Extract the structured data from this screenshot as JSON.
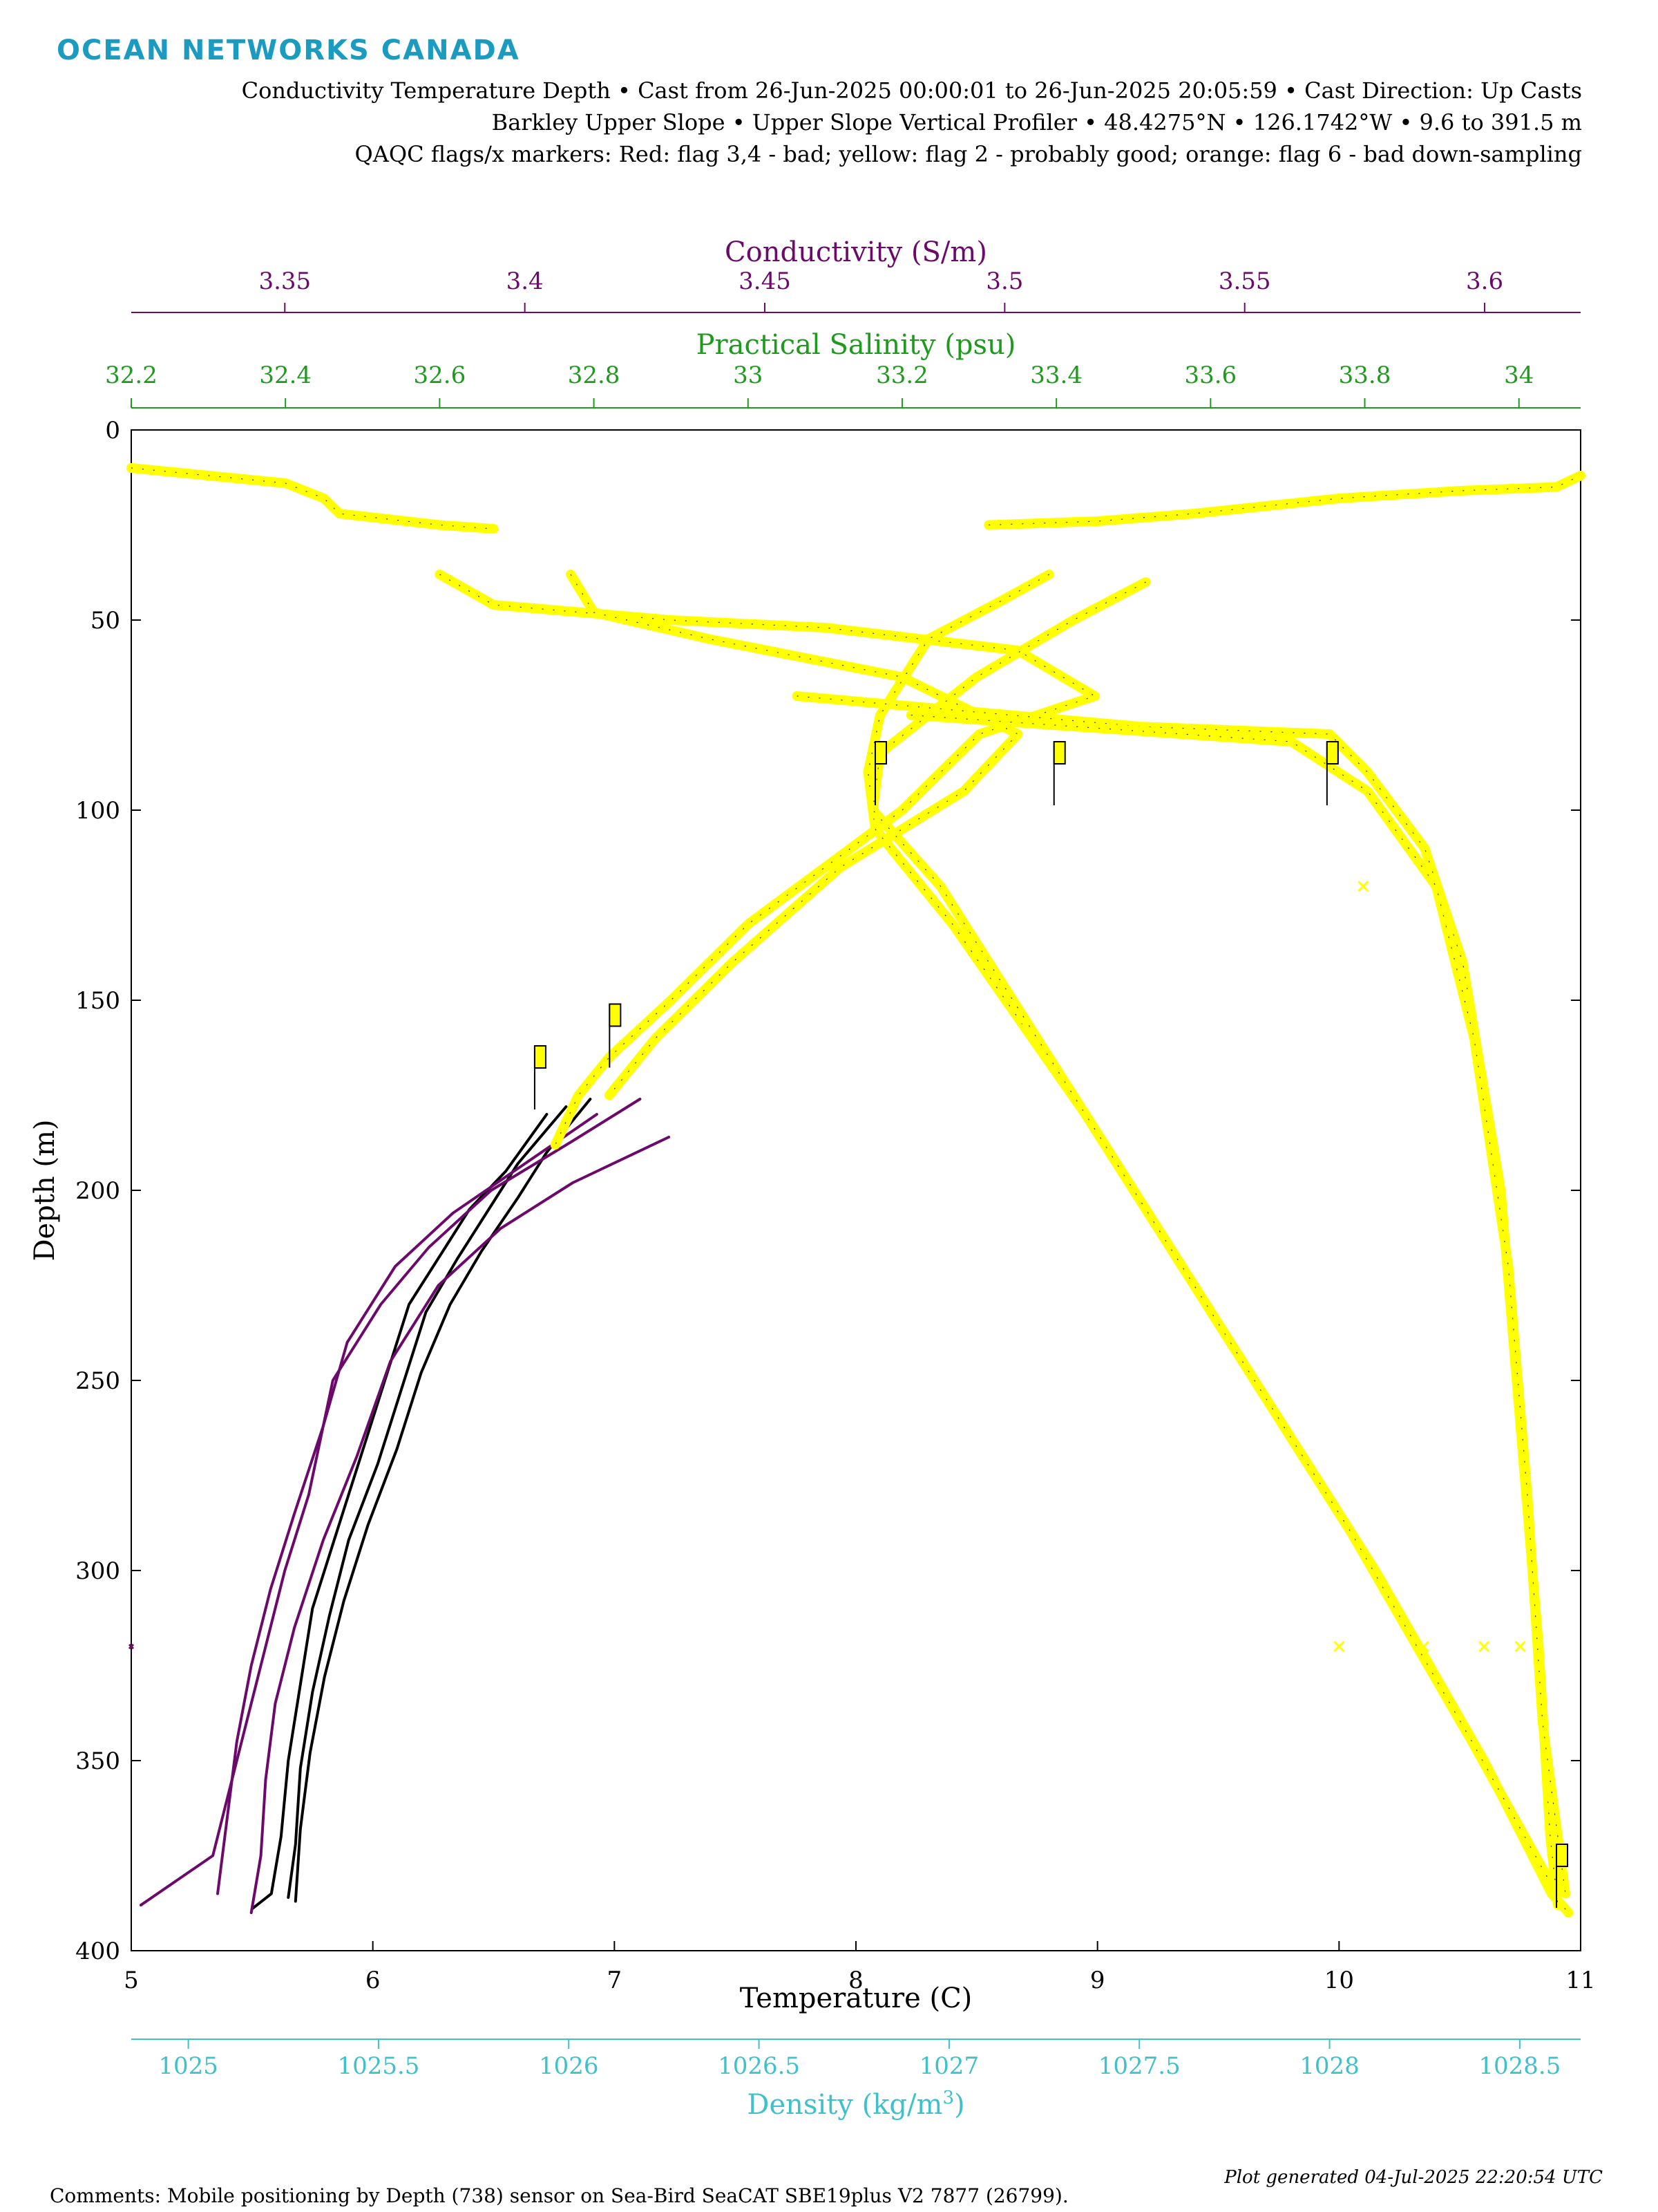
{
  "brand": "OCEAN NETWORKS CANADA",
  "header": {
    "line1": "Conductivity Temperature Depth • Cast from 26-Jun-2025 00:00:01 to 26-Jun-2025 20:05:59 • Cast Direction: Up Casts",
    "line2": "Barkley Upper Slope • Upper Slope Vertical Profiler • 48.4275°N • 126.1742°W • 9.6 to 391.5 m",
    "line3": "QAQC flags/x markers: Red: flag 3,4 - bad; yellow: flag 2 - probably good; orange: flag 6 - bad down-sampling"
  },
  "footer": {
    "comments": "Comments: Mobile positioning by Depth (738) sensor on Sea-Bird SeaCAT SBE19plus V2 7877 (26799).",
    "generated": "Plot generated 04-Jul-2025 22:20:54 UTC"
  },
  "colors": {
    "conductivity": "#6b0a6b",
    "salinity": "#1f9a1f",
    "density": "#3fc1c9",
    "temperature": "#000000",
    "flag_probably_good": "#ffff00"
  },
  "chart_data": {
    "type": "line",
    "ylabel": "Depth (m)",
    "ylim": [
      0,
      400
    ],
    "yticks": [
      0,
      50,
      100,
      150,
      200,
      250,
      300,
      350,
      400
    ],
    "y_reversed": true,
    "axes": {
      "temperature": {
        "label": "Temperature (C)",
        "lim": [
          5,
          11
        ],
        "ticks": [
          5,
          6,
          7,
          8,
          9,
          10,
          11
        ],
        "color": "#000000"
      },
      "conductivity": {
        "label": "Conductivity (S/m)",
        "lim": [
          3.318,
          3.62
        ],
        "ticks": [
          3.35,
          3.4,
          3.45,
          3.5,
          3.55,
          3.6
        ],
        "color": "#6b0a6b"
      },
      "salinity": {
        "label": "Practical Salinity (psu)",
        "lim": [
          32.2,
          34.08
        ],
        "ticks": [
          32.2,
          32.4,
          32.6,
          32.8,
          33,
          33.2,
          33.4,
          33.6,
          33.8,
          34
        ],
        "color": "#1f9a1f"
      },
      "density": {
        "label": "Density (kg/m3)",
        "lim": [
          1024.85,
          1028.66
        ],
        "ticks": [
          1025,
          1025.5,
          1026,
          1026.5,
          1027,
          1027.5,
          1028,
          1028.5
        ],
        "color": "#3fc1c9"
      }
    },
    "series": [
      {
        "axis": "temperature",
        "flag": "ok",
        "points": [
          [
            180,
            6.72
          ],
          [
            195,
            6.55
          ],
          [
            205,
            6.4
          ],
          [
            215,
            6.3
          ],
          [
            230,
            6.15
          ],
          [
            250,
            6.05
          ],
          [
            270,
            5.95
          ],
          [
            290,
            5.85
          ],
          [
            310,
            5.75
          ],
          [
            330,
            5.7
          ],
          [
            350,
            5.65
          ],
          [
            370,
            5.62
          ],
          [
            385,
            5.58
          ],
          [
            389,
            5.5
          ]
        ]
      },
      {
        "axis": "temperature",
        "flag": "ok",
        "points": [
          [
            178,
            6.8
          ],
          [
            193,
            6.6
          ],
          [
            205,
            6.48
          ],
          [
            218,
            6.35
          ],
          [
            232,
            6.22
          ],
          [
            252,
            6.12
          ],
          [
            272,
            6.02
          ],
          [
            292,
            5.9
          ],
          [
            312,
            5.82
          ],
          [
            332,
            5.75
          ],
          [
            352,
            5.7
          ],
          [
            372,
            5.68
          ],
          [
            386,
            5.65
          ]
        ]
      },
      {
        "axis": "temperature",
        "flag": "ok",
        "points": [
          [
            176,
            6.9
          ],
          [
            190,
            6.72
          ],
          [
            202,
            6.6
          ],
          [
            216,
            6.45
          ],
          [
            230,
            6.32
          ],
          [
            248,
            6.2
          ],
          [
            268,
            6.1
          ],
          [
            288,
            5.98
          ],
          [
            308,
            5.88
          ],
          [
            328,
            5.8
          ],
          [
            348,
            5.74
          ],
          [
            368,
            5.7
          ],
          [
            387,
            5.68
          ]
        ]
      },
      {
        "axis": "conductivity",
        "flag": "ok",
        "points": [
          [
            176,
            3.424
          ],
          [
            187,
            3.41
          ],
          [
            200,
            3.393
          ],
          [
            215,
            3.38
          ],
          [
            230,
            3.37
          ],
          [
            250,
            3.36
          ],
          [
            280,
            3.355
          ],
          [
            300,
            3.35
          ],
          [
            320,
            3.346
          ],
          [
            340,
            3.342
          ],
          [
            360,
            3.338
          ],
          [
            375,
            3.335
          ],
          [
            388,
            3.32
          ]
        ]
      },
      {
        "axis": "conductivity",
        "flag": "ok",
        "points": [
          [
            180,
            3.415
          ],
          [
            193,
            3.4
          ],
          [
            206,
            3.385
          ],
          [
            220,
            3.373
          ],
          [
            240,
            3.363
          ],
          [
            262,
            3.358
          ],
          [
            285,
            3.352
          ],
          [
            305,
            3.347
          ],
          [
            325,
            3.343
          ],
          [
            345,
            3.34
          ],
          [
            365,
            3.338
          ],
          [
            385,
            3.336
          ]
        ]
      },
      {
        "axis": "conductivity",
        "flag": "ok",
        "points": [
          [
            186,
            3.43
          ],
          [
            198,
            3.41
          ],
          [
            210,
            3.395
          ],
          [
            225,
            3.382
          ],
          [
            245,
            3.372
          ],
          [
            270,
            3.365
          ],
          [
            292,
            3.358
          ],
          [
            315,
            3.352
          ],
          [
            335,
            3.348
          ],
          [
            355,
            3.346
          ],
          [
            375,
            3.345
          ],
          [
            390,
            3.343
          ]
        ]
      },
      {
        "axis": "salinity",
        "flag": "probably-good",
        "points": [
          [
            10,
            32.2
          ],
          [
            12,
            32.3
          ],
          [
            14,
            32.4
          ],
          [
            18,
            32.45
          ],
          [
            22,
            32.47
          ],
          [
            25,
            32.6
          ],
          [
            26,
            32.67
          ]
        ]
      },
      {
        "axis": "salinity",
        "flag": "probably-good",
        "points": [
          [
            38,
            32.6
          ],
          [
            46,
            32.67
          ],
          [
            50,
            32.9
          ],
          [
            52,
            33.1
          ],
          [
            58,
            33.35
          ],
          [
            70,
            33.45
          ],
          [
            80,
            33.3
          ],
          [
            100,
            33.2
          ],
          [
            130,
            33.0
          ],
          [
            150,
            32.9
          ],
          [
            165,
            32.82
          ],
          [
            175,
            32.78
          ],
          [
            188,
            32.75
          ]
        ]
      },
      {
        "axis": "salinity",
        "flag": "probably-good",
        "points": [
          [
            38,
            32.77
          ],
          [
            48,
            32.8
          ],
          [
            55,
            32.95
          ],
          [
            65,
            33.2
          ],
          [
            80,
            33.35
          ],
          [
            95,
            33.28
          ],
          [
            115,
            33.12
          ],
          [
            140,
            32.98
          ],
          [
            160,
            32.88
          ],
          [
            175,
            32.82
          ]
        ]
      },
      {
        "axis": "temperature",
        "flag": "probably-good",
        "points": [
          [
            25,
            8.55
          ],
          [
            24,
            9.0
          ],
          [
            22,
            9.4
          ],
          [
            20,
            9.7
          ],
          [
            18,
            10.0
          ],
          [
            16,
            10.5
          ],
          [
            15,
            10.9
          ],
          [
            12,
            11.0
          ]
        ]
      },
      {
        "axis": "temperature",
        "flag": "probably-good",
        "points": [
          [
            38,
            8.8
          ],
          [
            45,
            8.6
          ],
          [
            55,
            8.3
          ],
          [
            75,
            8.1
          ],
          [
            90,
            8.05
          ],
          [
            105,
            8.08
          ],
          [
            130,
            8.4
          ],
          [
            180,
            8.95
          ],
          [
            240,
            9.55
          ],
          [
            300,
            10.15
          ],
          [
            350,
            10.6
          ],
          [
            385,
            10.88
          ],
          [
            390,
            10.95
          ]
        ]
      },
      {
        "axis": "temperature",
        "flag": "probably-good",
        "points": [
          [
            40,
            9.2
          ],
          [
            50,
            8.9
          ],
          [
            65,
            8.5
          ],
          [
            85,
            8.1
          ],
          [
            100,
            8.07
          ],
          [
            120,
            8.35
          ],
          [
            170,
            8.85
          ],
          [
            230,
            9.45
          ],
          [
            290,
            10.05
          ],
          [
            345,
            10.55
          ],
          [
            385,
            10.9
          ]
        ]
      },
      {
        "axis": "density",
        "flag": "probably-good",
        "points": [
          [
            70,
            1026.6
          ],
          [
            78,
            1027.5
          ],
          [
            80,
            1028.0
          ],
          [
            90,
            1028.1
          ],
          [
            110,
            1028.25
          ],
          [
            140,
            1028.35
          ],
          [
            200,
            1028.45
          ],
          [
            260,
            1028.5
          ],
          [
            320,
            1028.55
          ],
          [
            370,
            1028.58
          ],
          [
            388,
            1028.6
          ]
        ]
      },
      {
        "axis": "density",
        "flag": "probably-good",
        "points": [
          [
            75,
            1026.9
          ],
          [
            82,
            1027.9
          ],
          [
            95,
            1028.1
          ],
          [
            120,
            1028.28
          ],
          [
            160,
            1028.38
          ],
          [
            220,
            1028.47
          ],
          [
            280,
            1028.52
          ],
          [
            340,
            1028.56
          ],
          [
            385,
            1028.62
          ]
        ]
      }
    ],
    "markers": [
      {
        "axis": "conductivity",
        "depth": 320,
        "value": 3.318,
        "flag": "ok"
      },
      {
        "axis": "temperature",
        "depth": 320,
        "value": 10.0,
        "flag": "probably-good"
      },
      {
        "axis": "temperature",
        "depth": 320,
        "value": 10.35,
        "flag": "probably-good"
      },
      {
        "axis": "temperature",
        "depth": 320,
        "value": 10.6,
        "flag": "probably-good"
      },
      {
        "axis": "temperature",
        "depth": 320,
        "value": 10.75,
        "flag": "probably-good"
      },
      {
        "axis": "temperature",
        "depth": 120,
        "value": 10.1,
        "flag": "probably-good"
      }
    ],
    "flags": [
      {
        "axis": "temperature",
        "depth": 162,
        "value": 6.67
      },
      {
        "axis": "temperature",
        "depth": 151,
        "value": 6.98
      },
      {
        "axis": "temperature",
        "depth": 82,
        "value": 8.08
      },
      {
        "axis": "temperature",
        "depth": 82,
        "value": 8.82
      },
      {
        "axis": "temperature",
        "depth": 82,
        "value": 9.95
      },
      {
        "axis": "temperature",
        "depth": 372,
        "value": 10.9
      }
    ]
  }
}
